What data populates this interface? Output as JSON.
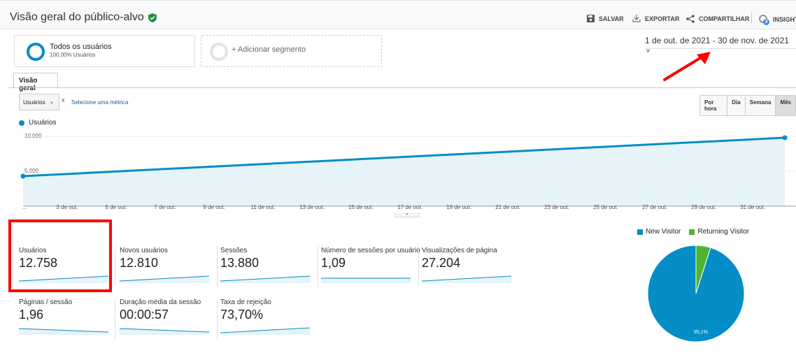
{
  "header": {
    "title": "Visão geral do público-alvo",
    "save": "SALVAR",
    "export": "EXPORTAR",
    "share": "COMPARTILHAR",
    "insights": "INSIGHTS",
    "insights_badge": "3"
  },
  "segments": {
    "all_users": "Todos os usuários",
    "all_users_sub": "100,00% Usuários",
    "add": "+ Adicionar segmento"
  },
  "date_range": "1 de out. de 2021 - 30 de nov. de 2021",
  "tabs": [
    "Visão geral"
  ],
  "controls": {
    "metric_select": "Usuários",
    "remove": "x",
    "select_metric": "Selecione uma métrica",
    "granularity": [
      "Por hora",
      "Dia",
      "Semana",
      "Mês"
    ],
    "active_granularity": "Mês"
  },
  "colors": {
    "accent": "#058dc7",
    "returning": "#50b432",
    "annotation": "#ff0000"
  },
  "chart_data": {
    "type": "area",
    "series": [
      {
        "name": "Usuários",
        "values": [
          4300,
          9800
        ]
      }
    ],
    "x_tick_labels": [
      "...",
      "3 de out.",
      "5 de out.",
      "7 de out.",
      "9 de out.",
      "11 de out.",
      "13 de out.",
      "15 de out.",
      "17 de out.",
      "19 de out.",
      "21 de out.",
      "23 de out.",
      "25 de out.",
      "27 de out.",
      "29 de out.",
      "31 de out."
    ],
    "y_tick_labels": [
      "10.000",
      "5.000"
    ],
    "ylim": [
      0,
      10000
    ],
    "grid": true
  },
  "metrics": [
    {
      "label": "Usuários",
      "value": "12.758",
      "trend": "up"
    },
    {
      "label": "Novos usuários",
      "value": "12.810",
      "trend": "up"
    },
    {
      "label": "Sessões",
      "value": "13.880",
      "trend": "up"
    },
    {
      "label": "Número de sessões por usuário",
      "value": "1,09",
      "trend": "flat"
    },
    {
      "label": "Visualizações de página",
      "value": "27.204",
      "trend": "up"
    },
    {
      "label": "Páginas / sessão",
      "value": "1,96",
      "trend": "down"
    },
    {
      "label": "Duração média da sessão",
      "value": "00:00:57",
      "trend": "down"
    },
    {
      "label": "Taxa de rejeição",
      "value": "73,70%",
      "trend": "up"
    }
  ],
  "pie": {
    "legend": [
      "New Visitor",
      "Returning Visitor"
    ],
    "values": [
      95.1,
      4.9
    ],
    "label": "95,1%"
  }
}
